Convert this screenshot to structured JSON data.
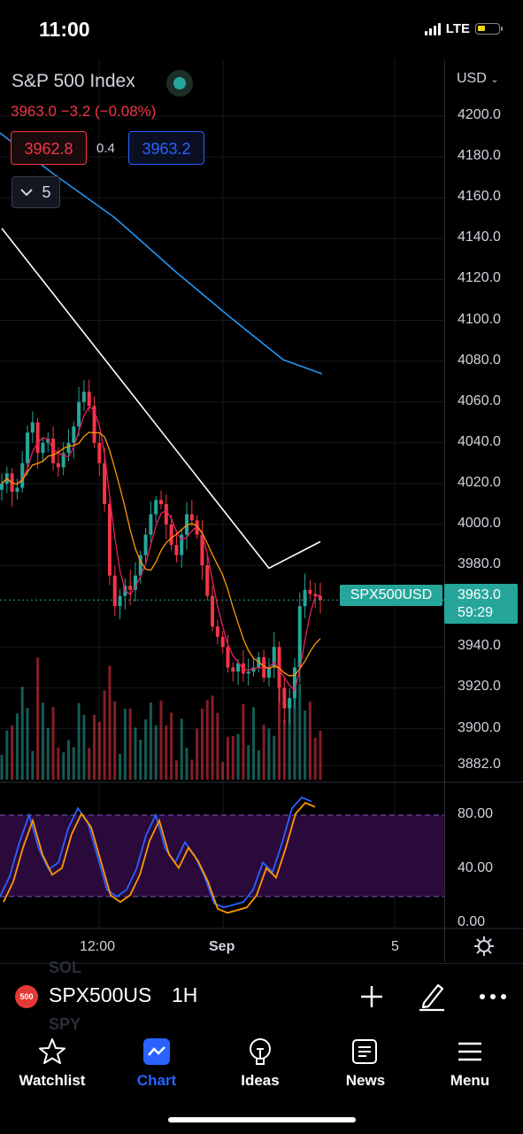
{
  "status_bar": {
    "time": "11:00",
    "network": "LTE"
  },
  "header": {
    "title": "S&P 500 Index",
    "quote": "3963.0  −3.2 (−0.08%)",
    "bid": "3962.8",
    "spread": "0.4",
    "ask": "3963.2",
    "indicators_count": "5",
    "currency": "USD"
  },
  "price_axis": [
    "4200.0",
    "4180.0",
    "4160.0",
    "4140.0",
    "4120.0",
    "4100.0",
    "4080.0",
    "4060.0",
    "4040.0",
    "4020.0",
    "4000.0",
    "3980.0",
    "3940.0",
    "3920.0",
    "3900.0",
    "3882.0"
  ],
  "last_price": {
    "symbol_label": "SPX500USD",
    "price": "3963.0",
    "countdown": "59:29"
  },
  "oscillator_axis": [
    "80.00",
    "40.00",
    "0.00"
  ],
  "time_axis": [
    "12:00",
    "Sep",
    "5"
  ],
  "toolbar": {
    "ghost_above": "SOL",
    "ghost_below": "SPY",
    "badge": "500",
    "symbol": "SPX500USD",
    "interval": "1H"
  },
  "nav": [
    {
      "label": "Watchlist",
      "icon": "star-icon"
    },
    {
      "label": "Chart",
      "icon": "chart-icon",
      "active": true
    },
    {
      "label": "Ideas",
      "icon": "lightbulb-icon"
    },
    {
      "label": "News",
      "icon": "newspaper-icon"
    },
    {
      "label": "Menu",
      "icon": "menu-icon"
    }
  ],
  "colors": {
    "up": "#26a69a",
    "down": "#f23645",
    "accent": "#2962ff",
    "ma_white": "#ffffff",
    "ma_blue": "#2196f3",
    "ma_orange": "#ff9800",
    "ma_pink": "#e91e63",
    "osc_band": "#2a0a3a"
  },
  "chart_data": {
    "type": "candlestick",
    "interval": "1H",
    "y_range": [
      3882,
      4210
    ],
    "candles_close": [
      4020,
      4025,
      4016,
      4018,
      4030,
      4045,
      4050,
      4035,
      4040,
      4042,
      4030,
      4028,
      4035,
      4040,
      4048,
      4060,
      4065,
      4058,
      4040,
      4030,
      4010,
      3975,
      3960,
      3965,
      3970,
      3968,
      3975,
      3985,
      3995,
      4005,
      4012,
      4010,
      4000,
      3990,
      3985,
      3995,
      4005,
      4002,
      3995,
      3980,
      3965,
      3950,
      3945,
      3940,
      3930,
      3928,
      3932,
      3927,
      3928,
      3930,
      3935,
      3925,
      3930,
      3940,
      3920,
      3910,
      3915,
      3930,
      3960,
      3968,
      3966,
      3965,
      3963
    ],
    "oscillator_range": [
      0,
      100
    ],
    "oscillator_bands": [
      80,
      20
    ]
  }
}
